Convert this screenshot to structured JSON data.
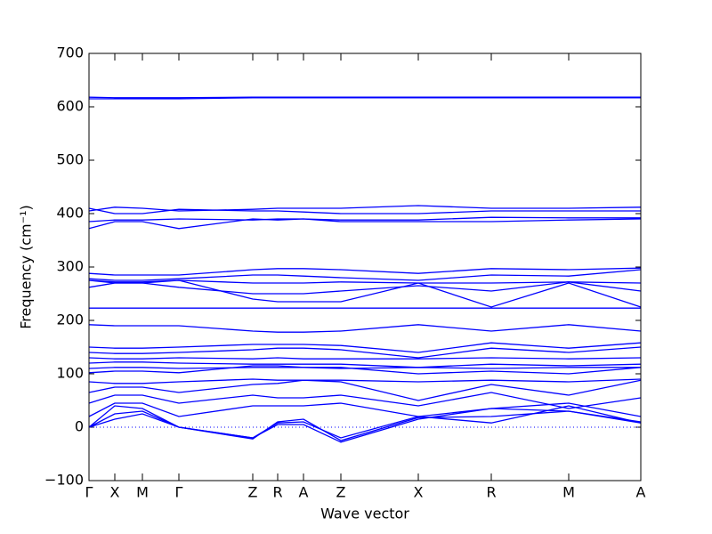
{
  "chart_data": {
    "type": "line",
    "xlabel": "Wave vector",
    "ylabel": "Frequency (cm⁻¹)",
    "color": "#0000ff",
    "x": [
      0,
      0.29,
      0.6,
      1.01,
      1.84,
      2.12,
      2.41,
      2.83,
      3.7,
      4.52,
      5.39,
      6.2
    ],
    "xlim": [
      0,
      6.2
    ],
    "xticks": [
      {
        "value": 0,
        "label": "Γ"
      },
      {
        "value": 0.29,
        "label": "X"
      },
      {
        "value": 0.6,
        "label": "M"
      },
      {
        "value": 1.01,
        "label": "Γ"
      },
      {
        "value": 1.84,
        "label": "Z"
      },
      {
        "value": 2.12,
        "label": "R"
      },
      {
        "value": 2.41,
        "label": "A"
      },
      {
        "value": 2.83,
        "label": "Z"
      },
      {
        "value": 3.7,
        "label": "X"
      },
      {
        "value": 4.52,
        "label": "R"
      },
      {
        "value": 5.39,
        "label": "M"
      },
      {
        "value": 6.2,
        "label": "A"
      }
    ],
    "ylim": [
      -100,
      700
    ],
    "yticks": [
      {
        "value": -100,
        "label": "−100"
      },
      0,
      100,
      200,
      300,
      400,
      500,
      600,
      700
    ],
    "zero_line": 0,
    "series": [
      {
        "values": [
          615,
          615,
          615,
          615,
          617,
          617,
          617,
          617,
          617,
          617,
          617,
          617
        ]
      },
      {
        "values": [
          618,
          617,
          617,
          617,
          618,
          618,
          618,
          618,
          618,
          618,
          618,
          618
        ]
      },
      {
        "values": [
          405,
          412,
          410,
          405,
          408,
          410,
          410,
          410,
          415,
          410,
          410,
          412
        ]
      },
      {
        "values": [
          410,
          400,
          400,
          408,
          405,
          405,
          403,
          400,
          400,
          405,
          405,
          405
        ]
      },
      {
        "values": [
          385,
          388,
          388,
          390,
          388,
          390,
          390,
          388,
          388,
          393,
          392,
          392
        ]
      },
      {
        "values": [
          372,
          385,
          385,
          372,
          390,
          388,
          390,
          385,
          385,
          385,
          388,
          390
        ]
      },
      {
        "values": [
          288,
          285,
          285,
          285,
          295,
          297,
          297,
          295,
          288,
          297,
          295,
          298
        ]
      },
      {
        "values": [
          278,
          275,
          275,
          278,
          285,
          285,
          283,
          280,
          275,
          285,
          283,
          295
        ]
      },
      {
        "values": [
          275,
          272,
          272,
          275,
          270,
          270,
          270,
          272,
          270,
          270,
          272,
          270
        ]
      },
      {
        "values": [
          262,
          270,
          270,
          262,
          250,
          250,
          250,
          255,
          265,
          255,
          272,
          255
        ]
      },
      {
        "values": [
          275,
          270,
          270,
          275,
          240,
          235,
          235,
          235,
          270,
          225,
          270,
          225
        ]
      },
      {
        "values": [
          223,
          223,
          223,
          223,
          223,
          223,
          223,
          223,
          223,
          223,
          223,
          223
        ]
      },
      {
        "values": [
          192,
          190,
          190,
          190,
          180,
          178,
          178,
          180,
          192,
          180,
          192,
          180
        ]
      },
      {
        "values": [
          150,
          148,
          148,
          150,
          155,
          155,
          155,
          153,
          140,
          158,
          148,
          158
        ]
      },
      {
        "values": [
          140,
          138,
          138,
          140,
          145,
          148,
          148,
          145,
          130,
          148,
          140,
          150
        ]
      },
      {
        "values": [
          130,
          128,
          128,
          130,
          128,
          130,
          128,
          128,
          128,
          130,
          128,
          130
        ]
      },
      {
        "values": [
          120,
          122,
          122,
          120,
          118,
          118,
          118,
          118,
          112,
          118,
          115,
          118
        ]
      },
      {
        "values": [
          110,
          112,
          112,
          110,
          112,
          112,
          112,
          110,
          112,
          110,
          112,
          112
        ]
      },
      {
        "values": [
          102,
          105,
          105,
          102,
          115,
          115,
          112,
          112,
          100,
          105,
          100,
          112
        ]
      },
      {
        "values": [
          85,
          82,
          82,
          85,
          90,
          88,
          88,
          88,
          85,
          88,
          85,
          90
        ]
      },
      {
        "values": [
          65,
          75,
          75,
          65,
          80,
          82,
          88,
          85,
          50,
          80,
          60,
          88
        ]
      },
      {
        "values": [
          45,
          60,
          60,
          45,
          60,
          55,
          55,
          60,
          40,
          65,
          35,
          55
        ]
      },
      {
        "values": [
          20,
          45,
          45,
          20,
          40,
          40,
          40,
          45,
          20,
          35,
          45,
          20
        ]
      },
      {
        "values": [
          0,
          40,
          35,
          0,
          -20,
          8,
          10,
          -20,
          20,
          8,
          40,
          8
        ]
      },
      {
        "values": [
          0,
          25,
          30,
          0,
          -22,
          10,
          15,
          -25,
          18,
          20,
          30,
          10
        ]
      },
      {
        "values": [
          0,
          15,
          25,
          0,
          -20,
          5,
          5,
          -28,
          15,
          35,
          30,
          8
        ]
      }
    ]
  }
}
